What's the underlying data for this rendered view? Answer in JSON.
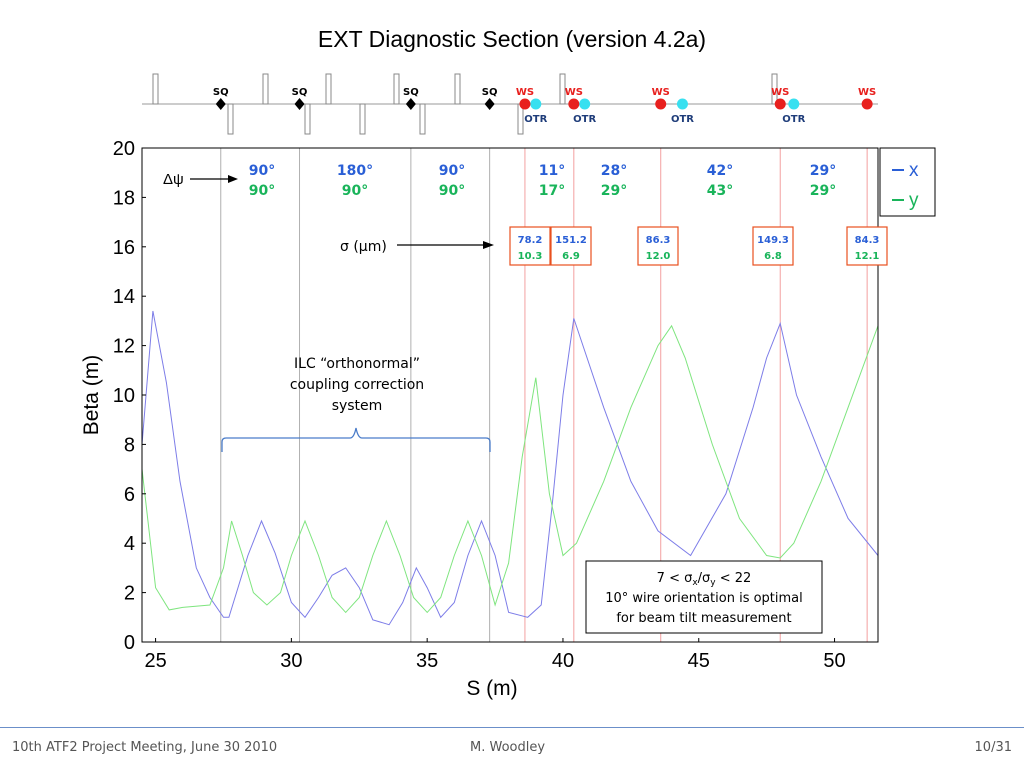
{
  "title": "EXT Diagnostic Section (version 4.2a)",
  "footer": {
    "left": "10th ATF2 Project Meeting, June 30 2010",
    "center": "M. Woodley",
    "right": "10/31"
  },
  "beamline": {
    "sq_label": "SQ",
    "ws_label": "WS",
    "otr_label": "OTR",
    "sq_s": [
      27.4,
      30.3,
      34.4,
      37.3
    ],
    "ws_s": [
      38.6,
      40.4,
      43.6,
      48.0,
      51.2
    ],
    "otr_s": [
      39.0,
      40.8,
      44.4,
      48.5
    ],
    "colors": {
      "ws": "#e8201e",
      "ws_text": "#e8201e",
      "otr": "#38e0f0",
      "otr_text": "#1f3d7a",
      "sq": "#000000"
    }
  },
  "annotations": {
    "dpsi_label": "Δψ",
    "sigma_label": "σ (μm)",
    "phase_x": [
      "90°",
      "180°",
      "90°",
      "11°",
      "28°",
      "42°",
      "29°"
    ],
    "phase_y": [
      "90°",
      "90°",
      "90°",
      "17°",
      "29°",
      "43°",
      "29°"
    ],
    "sigma_boxes": [
      {
        "x": "78.2",
        "y": "10.3"
      },
      {
        "x": "151.2",
        "y": "6.9"
      },
      {
        "x": "86.3",
        "y": "12.0"
      },
      {
        "x": "149.3",
        "y": "6.8"
      },
      {
        "x": "84.3",
        "y": "12.1"
      }
    ],
    "ilc_lines": [
      "ILC “orthonormal”",
      "coupling correction",
      "system"
    ],
    "ratio_line1": "7 < σ",
    "ratio_sub_x": "x",
    "ratio_slash": "/σ",
    "ratio_sub_y": "y",
    "ratio_tail": " < 22",
    "note_line2": "10° wire orientation is optimal",
    "note_line3": "for beam tilt measurement"
  },
  "legend": [
    {
      "label": "x",
      "color": "#2a5fd6"
    },
    {
      "label": "y",
      "color": "#19b45a"
    }
  ],
  "chart_data": {
    "type": "line",
    "title": "",
    "xlabel": "S (m)",
    "ylabel": "Beta (m)",
    "xlim": [
      24.5,
      51.6
    ],
    "ylim": [
      0,
      20
    ],
    "xticks": [
      25,
      30,
      35,
      40,
      45,
      50
    ],
    "yticks": [
      0,
      2,
      4,
      6,
      8,
      10,
      12,
      14,
      16,
      18,
      20
    ],
    "sq_lines": [
      27.4,
      30.3,
      34.4,
      37.3
    ],
    "ws_lines": [
      38.6,
      40.4,
      43.6,
      48.0,
      51.2
    ],
    "series": [
      {
        "name": "x",
        "color": "#7d7de8",
        "x": [
          24.5,
          24.9,
          25.4,
          25.9,
          26.5,
          27.0,
          27.5,
          27.7,
          28.4,
          28.9,
          29.4,
          30.0,
          30.5,
          31.0,
          31.5,
          32.0,
          32.5,
          33.0,
          33.6,
          34.1,
          34.6,
          35.0,
          35.5,
          36.0,
          36.5,
          37.0,
          37.5,
          38.0,
          38.7,
          39.2,
          39.6,
          40.0,
          40.4,
          41.5,
          42.5,
          43.5,
          44.7,
          46.0,
          47.0,
          47.5,
          48.0,
          48.6,
          49.5,
          50.5,
          51.6
        ],
        "y": [
          8.0,
          13.4,
          10.5,
          6.5,
          3.0,
          1.8,
          1.0,
          1.0,
          3.5,
          4.9,
          3.6,
          1.6,
          1.0,
          1.8,
          2.7,
          3.0,
          2.2,
          0.9,
          0.7,
          1.6,
          3.0,
          2.2,
          1.0,
          1.6,
          3.5,
          4.9,
          3.5,
          1.2,
          1.0,
          1.5,
          5.5,
          10.0,
          13.1,
          9.5,
          6.5,
          4.5,
          3.5,
          6.0,
          9.5,
          11.5,
          12.9,
          10.0,
          7.5,
          5.0,
          3.5
        ]
      },
      {
        "name": "y",
        "color": "#7fe57f",
        "x": [
          24.5,
          25.0,
          25.5,
          26.0,
          27.0,
          27.5,
          27.8,
          28.2,
          28.6,
          29.1,
          29.6,
          30.0,
          30.5,
          31.0,
          31.5,
          32.0,
          32.5,
          33.0,
          33.5,
          34.0,
          34.5,
          35.0,
          35.5,
          36.0,
          36.5,
          37.0,
          37.5,
          38.0,
          38.5,
          39.0,
          39.5,
          40.0,
          40.5,
          41.5,
          42.5,
          43.5,
          44.0,
          44.5,
          45.5,
          46.5,
          47.5,
          48.0,
          48.5,
          49.5,
          50.5,
          51.6
        ],
        "y": [
          7.0,
          2.2,
          1.3,
          1.4,
          1.5,
          3.0,
          4.9,
          3.5,
          2.0,
          1.5,
          2.0,
          3.5,
          4.9,
          3.5,
          1.8,
          1.2,
          1.8,
          3.5,
          4.9,
          3.5,
          1.8,
          1.2,
          1.8,
          3.5,
          4.9,
          3.5,
          1.5,
          3.2,
          7.5,
          10.7,
          6.0,
          3.5,
          4.0,
          6.5,
          9.5,
          12.0,
          12.8,
          11.5,
          8.0,
          5.0,
          3.5,
          3.4,
          4.0,
          6.5,
          9.5,
          12.8
        ]
      }
    ],
    "grid": false,
    "legend_position": "top-right-outside"
  }
}
